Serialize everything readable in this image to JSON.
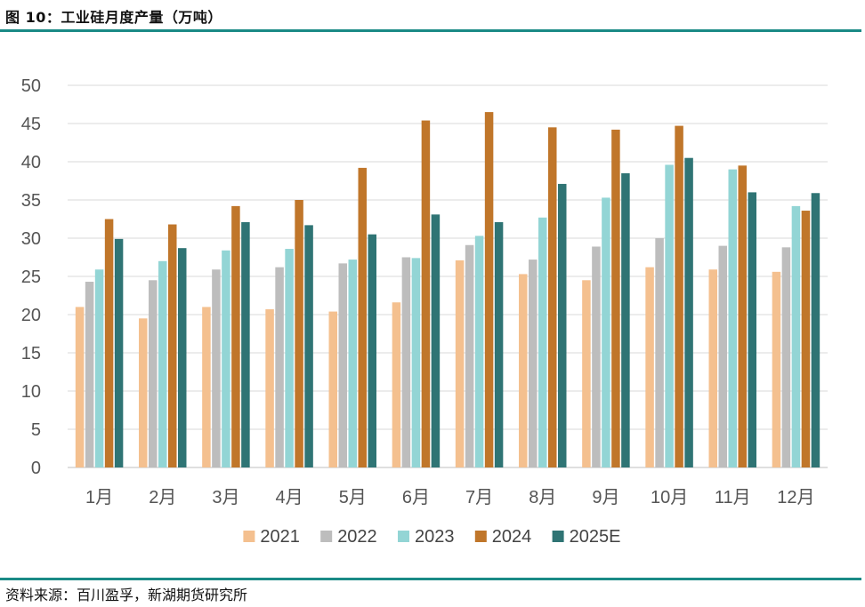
{
  "header": {
    "title": "图 10：工业硅月度产量（万吨）"
  },
  "footer": {
    "source": "资料来源：百川盈孚，新湖期货研究所"
  },
  "colors": {
    "rule": "#1a8a86",
    "grid": "#d9d9d9",
    "axis": "#bfbfbf"
  },
  "chart_data": {
    "type": "bar",
    "title": "工业硅月度产量（万吨）",
    "xlabel": "",
    "ylabel": "",
    "ylim": [
      0,
      50
    ],
    "yticks": [
      0,
      5,
      10,
      15,
      20,
      25,
      30,
      35,
      40,
      45,
      50
    ],
    "grid": true,
    "legend_position": "bottom",
    "categories": [
      "1月",
      "2月",
      "3月",
      "4月",
      "5月",
      "6月",
      "7月",
      "8月",
      "9月",
      "10月",
      "11月",
      "12月"
    ],
    "series": [
      {
        "name": "2021",
        "color": "#f4c08f",
        "values": [
          21.0,
          19.5,
          21.0,
          20.7,
          20.4,
          21.6,
          27.1,
          25.3,
          24.5,
          26.2,
          25.9,
          25.6
        ]
      },
      {
        "name": "2022",
        "color": "#bdbdbd",
        "values": [
          24.3,
          24.5,
          25.9,
          26.2,
          26.7,
          27.5,
          29.1,
          27.2,
          28.9,
          30.0,
          29.0,
          28.8
        ]
      },
      {
        "name": "2023",
        "color": "#93d5d5",
        "values": [
          25.9,
          27.0,
          28.4,
          28.6,
          27.2,
          27.4,
          30.3,
          32.7,
          35.3,
          39.6,
          39.0,
          34.2
        ]
      },
      {
        "name": "2024",
        "color": "#c0762a",
        "values": [
          32.5,
          31.8,
          34.2,
          35.0,
          39.2,
          45.4,
          46.5,
          44.5,
          44.2,
          44.7,
          39.5,
          33.6
        ]
      },
      {
        "name": "2025E",
        "color": "#2f7474",
        "values": [
          29.9,
          28.7,
          32.1,
          31.7,
          30.5,
          33.1,
          32.1,
          37.1,
          38.5,
          40.5,
          36.0,
          35.9
        ]
      }
    ]
  }
}
